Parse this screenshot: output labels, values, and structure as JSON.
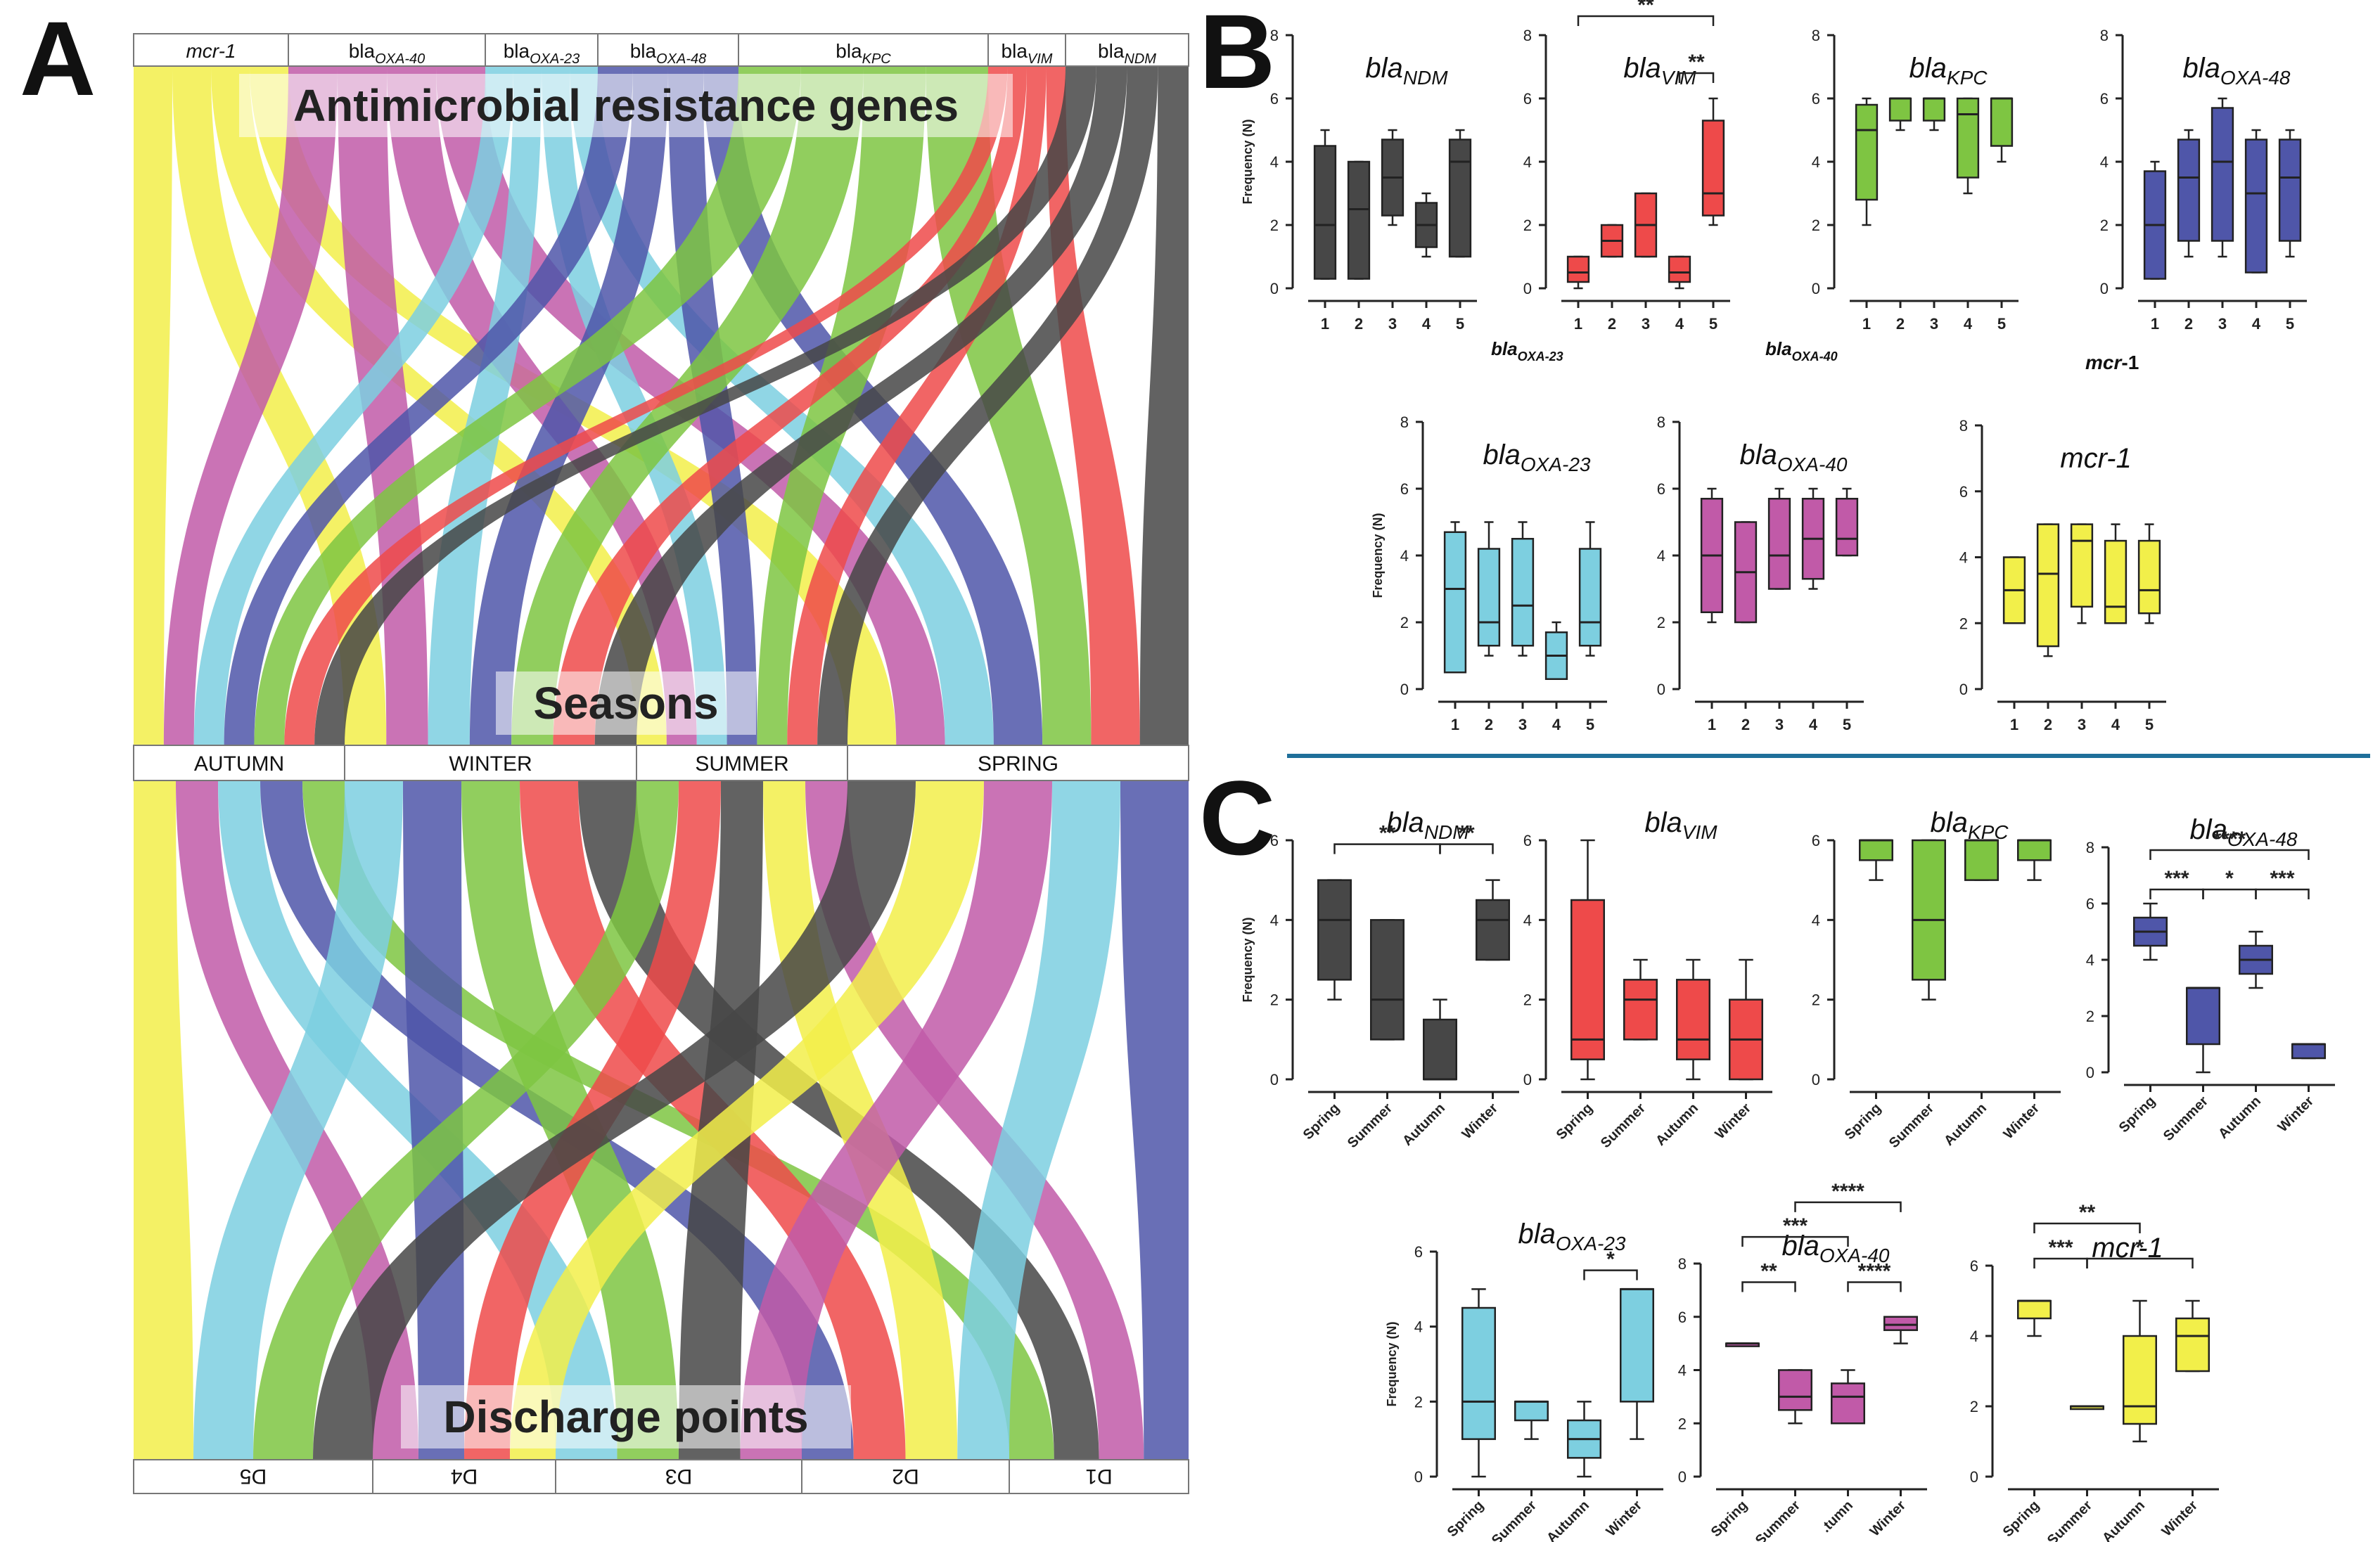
{
  "panel_letters": {
    "a": "A",
    "b": "B",
    "c": "C"
  },
  "colors": {
    "mcr1": "#f2ef4a",
    "oxa40": "#c15aa8",
    "oxa23": "#7dcfe0",
    "oxa48": "#4f56a9",
    "kpc": "#7ec542",
    "vim": "#ee4a4a",
    "ndm": "#474747",
    "divider": "#1f6f9a"
  },
  "sankey": {
    "title_top": "Antimicrobial resistance genes",
    "title_mid": "Seasons",
    "title_bottom": "Discharge points",
    "genes": [
      {
        "key": "mcr1",
        "base": "mcr-1",
        "sub": ""
      },
      {
        "key": "oxa40",
        "base": "bla",
        "sub": "OXA-40"
      },
      {
        "key": "oxa23",
        "base": "bla",
        "sub": "OXA-23"
      },
      {
        "key": "oxa48",
        "base": "bla",
        "sub": "OXA-48"
      },
      {
        "key": "kpc",
        "base": "bla",
        "sub": "KPC"
      },
      {
        "key": "vim",
        "base": "bla",
        "sub": "VIM"
      },
      {
        "key": "ndm",
        "base": "bla",
        "sub": "NDM"
      }
    ],
    "seasons": [
      "AUTUMN",
      "WINTER",
      "SUMMER",
      "SPRING"
    ],
    "points": [
      "D5",
      "D4",
      "D3",
      "D2",
      "D1"
    ]
  },
  "panel_b_stray_labels": [
    {
      "base": "bla",
      "sub": "OXA-23"
    },
    {
      "base": "bla",
      "sub": "OXA-40"
    },
    {
      "base": "mcr",
      "sub": "-1"
    }
  ],
  "chart_data": [
    {
      "id": "b-ndm",
      "panel": "B",
      "type": "boxplot",
      "color_key": "ndm",
      "title_base": "bla",
      "title_sub": "NDM",
      "ylabel": "Frequency (N)",
      "ylim": [
        0,
        8
      ],
      "yticks": [
        "0",
        "2",
        "4",
        "6",
        "8"
      ],
      "categories": [
        "1",
        "2",
        "3",
        "4",
        "5"
      ],
      "boxes": [
        {
          "min": 0.3,
          "q1": 0.3,
          "median": 2,
          "q3": 4.5,
          "max": 5
        },
        {
          "min": 0.3,
          "q1": 0.3,
          "median": 2.5,
          "q3": 4,
          "max": 4
        },
        {
          "min": 2,
          "q1": 2.3,
          "median": 3.5,
          "q3": 4.7,
          "max": 5
        },
        {
          "min": 1,
          "q1": 1.3,
          "median": 2,
          "q3": 2.7,
          "max": 3
        },
        {
          "min": 1,
          "q1": 1,
          "median": 4,
          "q3": 4.7,
          "max": 5
        }
      ],
      "sig": []
    },
    {
      "id": "b-vim",
      "panel": "B",
      "type": "boxplot",
      "color_key": "vim",
      "title_base": "bla",
      "title_sub": "VIM",
      "ylabel": "",
      "ylim": [
        0,
        8
      ],
      "yticks": [
        "0",
        "2",
        "4",
        "6",
        "8"
      ],
      "categories": [
        "1",
        "2",
        "3",
        "4",
        "5"
      ],
      "boxes": [
        {
          "min": 0,
          "q1": 0.2,
          "median": 0.5,
          "q3": 1,
          "max": 1
        },
        {
          "min": 1,
          "q1": 1,
          "median": 1.5,
          "q3": 2,
          "max": 2
        },
        {
          "min": 1,
          "q1": 1,
          "median": 2,
          "q3": 3,
          "max": 3
        },
        {
          "min": 0,
          "q1": 0.2,
          "median": 0.5,
          "q3": 1,
          "max": 1
        },
        {
          "min": 2,
          "q1": 2.3,
          "median": 3,
          "q3": 5.3,
          "max": 6
        }
      ],
      "sig": [
        {
          "from": 1,
          "to": 5,
          "label": "**",
          "level": 8.6
        },
        {
          "from": 4,
          "to": 5,
          "label": "**",
          "level": 6.8
        }
      ]
    },
    {
      "id": "b-kpc",
      "panel": "B",
      "type": "boxplot",
      "color_key": "kpc",
      "title_base": "bla",
      "title_sub": "KPC",
      "ylabel": "",
      "ylim": [
        0,
        8
      ],
      "yticks": [
        "0",
        "2",
        "4",
        "6",
        "8"
      ],
      "categories": [
        "1",
        "2",
        "3",
        "4",
        "5"
      ],
      "boxes": [
        {
          "min": 2,
          "q1": 2.8,
          "median": 5,
          "q3": 5.8,
          "max": 6
        },
        {
          "min": 5,
          "q1": 5.3,
          "median": 6,
          "q3": 6,
          "max": 6
        },
        {
          "min": 5,
          "q1": 5.3,
          "median": 6,
          "q3": 6,
          "max": 6
        },
        {
          "min": 3,
          "q1": 3.5,
          "median": 5.5,
          "q3": 6,
          "max": 6
        },
        {
          "min": 4,
          "q1": 4.5,
          "median": 6,
          "q3": 6,
          "max": 6
        }
      ],
      "sig": []
    },
    {
      "id": "b-oxa48",
      "panel": "B",
      "type": "boxplot",
      "color_key": "oxa48",
      "title_base": "bla",
      "title_sub": "OXA-48",
      "ylabel": "",
      "ylim": [
        0,
        8
      ],
      "yticks": [
        "0",
        "2",
        "4",
        "6",
        "8"
      ],
      "categories": [
        "1",
        "2",
        "3",
        "4",
        "5"
      ],
      "boxes": [
        {
          "min": 0.3,
          "q1": 0.3,
          "median": 2,
          "q3": 3.7,
          "max": 4
        },
        {
          "min": 1,
          "q1": 1.5,
          "median": 3.5,
          "q3": 4.7,
          "max": 5
        },
        {
          "min": 1,
          "q1": 1.5,
          "median": 4,
          "q3": 5.7,
          "max": 6
        },
        {
          "min": 0.5,
          "q1": 0.5,
          "median": 3,
          "q3": 4.7,
          "max": 5
        },
        {
          "min": 1,
          "q1": 1.5,
          "median": 3.5,
          "q3": 4.7,
          "max": 5
        }
      ],
      "sig": []
    },
    {
      "id": "b-oxa23",
      "panel": "B",
      "type": "boxplot",
      "color_key": "oxa23",
      "title_base": "bla",
      "title_sub": "OXA-23",
      "ylabel": "Frequency (N)",
      "ylim": [
        0,
        8
      ],
      "yticks": [
        "0",
        "2",
        "4",
        "6",
        "8"
      ],
      "categories": [
        "1",
        "2",
        "3",
        "4",
        "5"
      ],
      "boxes": [
        {
          "min": 0.5,
          "q1": 0.5,
          "median": 3,
          "q3": 4.7,
          "max": 5
        },
        {
          "min": 1,
          "q1": 1.3,
          "median": 2,
          "q3": 4.2,
          "max": 5
        },
        {
          "min": 1,
          "q1": 1.3,
          "median": 2.5,
          "q3": 4.5,
          "max": 5
        },
        {
          "min": 0.3,
          "q1": 0.3,
          "median": 1,
          "q3": 1.7,
          "max": 2
        },
        {
          "min": 1,
          "q1": 1.3,
          "median": 2,
          "q3": 4.2,
          "max": 5
        }
      ],
      "sig": []
    },
    {
      "id": "b-oxa40",
      "panel": "B",
      "type": "boxplot",
      "color_key": "oxa40",
      "title_base": "bla",
      "title_sub": "OXA-40",
      "ylabel": "",
      "ylim": [
        0,
        8
      ],
      "yticks": [
        "0",
        "2",
        "4",
        "6",
        "8"
      ],
      "categories": [
        "1",
        "2",
        "3",
        "4",
        "5"
      ],
      "boxes": [
        {
          "min": 2,
          "q1": 2.3,
          "median": 4,
          "q3": 5.7,
          "max": 6
        },
        {
          "min": 2,
          "q1": 2,
          "median": 3.5,
          "q3": 5,
          "max": 5
        },
        {
          "min": 3,
          "q1": 3,
          "median": 4,
          "q3": 5.7,
          "max": 6
        },
        {
          "min": 3,
          "q1": 3.3,
          "median": 4.5,
          "q3": 5.7,
          "max": 6
        },
        {
          "min": 4,
          "q1": 4,
          "median": 4.5,
          "q3": 5.7,
          "max": 6
        }
      ],
      "sig": []
    },
    {
      "id": "b-mcr1",
      "panel": "B",
      "type": "boxplot",
      "color_key": "mcr1",
      "title_base": "mcr-1",
      "title_sub": "",
      "ylabel": "",
      "ylim": [
        0,
        8
      ],
      "yticks": [
        "0",
        "2",
        "4",
        "6",
        "8"
      ],
      "categories": [
        "1",
        "2",
        "3",
        "4",
        "5"
      ],
      "boxes": [
        {
          "min": 2,
          "q1": 2,
          "median": 3,
          "q3": 4,
          "max": 4
        },
        {
          "min": 1,
          "q1": 1.3,
          "median": 3.5,
          "q3": 5,
          "max": 5
        },
        {
          "min": 2,
          "q1": 2.5,
          "median": 4.5,
          "q3": 5,
          "max": 5
        },
        {
          "min": 2,
          "q1": 2,
          "median": 2.5,
          "q3": 4.5,
          "max": 5
        },
        {
          "min": 2,
          "q1": 2.3,
          "median": 3,
          "q3": 4.5,
          "max": 5
        }
      ],
      "sig": []
    },
    {
      "id": "c-ndm",
      "panel": "C",
      "type": "boxplot",
      "color_key": "ndm",
      "title_base": "bla",
      "title_sub": "NDM",
      "ylabel": "Frequency (N)",
      "ylim": [
        0,
        6
      ],
      "yticks": [
        "0",
        "2",
        "4",
        "6"
      ],
      "categories": [
        "Spring",
        "Summer",
        "Autumn",
        "Winter"
      ],
      "boxes": [
        {
          "min": 2,
          "q1": 2.5,
          "median": 4,
          "q3": 5,
          "max": 5
        },
        {
          "min": 1,
          "q1": 1,
          "median": 2,
          "q3": 4,
          "max": 4
        },
        {
          "min": 0,
          "q1": 0,
          "median": 0,
          "q3": 1.5,
          "max": 2
        },
        {
          "min": 3,
          "q1": 3,
          "median": 4,
          "q3": 4.5,
          "max": 5
        }
      ],
      "sig": [
        {
          "from": 1,
          "to": 3,
          "label": "**",
          "level": 5.9
        },
        {
          "from": 3,
          "to": 4,
          "label": "**",
          "level": 5.9
        }
      ]
    },
    {
      "id": "c-vim",
      "panel": "C",
      "type": "boxplot",
      "color_key": "vim",
      "title_base": "bla",
      "title_sub": "VIM",
      "ylabel": "",
      "ylim": [
        0,
        6
      ],
      "yticks": [
        "0",
        "2",
        "4",
        "6"
      ],
      "categories": [
        "Spring",
        "Summer",
        "Autumn",
        "Winter"
      ],
      "boxes": [
        {
          "min": 0,
          "q1": 0.5,
          "median": 1,
          "q3": 4.5,
          "max": 6
        },
        {
          "min": 1,
          "q1": 1,
          "median": 2,
          "q3": 2.5,
          "max": 3
        },
        {
          "min": 0,
          "q1": 0.5,
          "median": 1,
          "q3": 2.5,
          "max": 3
        },
        {
          "min": 0,
          "q1": 0,
          "median": 1,
          "q3": 2,
          "max": 3
        }
      ],
      "sig": []
    },
    {
      "id": "c-kpc",
      "panel": "C",
      "type": "boxplot",
      "color_key": "kpc",
      "title_base": "bla",
      "title_sub": "KPC",
      "ylabel": "",
      "ylim": [
        0,
        6
      ],
      "yticks": [
        "0",
        "2",
        "4",
        "6"
      ],
      "categories": [
        "Spring",
        "Summer",
        "Autumn",
        "Winter"
      ],
      "boxes": [
        {
          "min": 5,
          "q1": 5.5,
          "median": 6,
          "q3": 6,
          "max": 6
        },
        {
          "min": 2,
          "q1": 2.5,
          "median": 4,
          "q3": 6,
          "max": 6
        },
        {
          "min": 5,
          "q1": 5,
          "median": 6,
          "q3": 6,
          "max": 6
        },
        {
          "min": 5,
          "q1": 5.5,
          "median": 6,
          "q3": 6,
          "max": 6
        }
      ],
      "sig": []
    },
    {
      "id": "c-oxa48",
      "panel": "C",
      "type": "boxplot",
      "color_key": "oxa48",
      "title_base": "bla",
      "title_sub": "OXA-48",
      "ylabel": "",
      "ylim": [
        0,
        8
      ],
      "yticks": [
        "0",
        "2",
        "4",
        "6",
        "8"
      ],
      "categories": [
        "Spring",
        "Summer",
        "Autumn",
        "Winter"
      ],
      "boxes": [
        {
          "min": 4,
          "q1": 4.5,
          "median": 5,
          "q3": 5.5,
          "max": 6
        },
        {
          "min": 0,
          "q1": 1,
          "median": 3,
          "q3": 3,
          "max": 3
        },
        {
          "min": 3,
          "q1": 3.5,
          "median": 4,
          "q3": 4.5,
          "max": 5
        },
        {
          "min": 0.5,
          "q1": 0.5,
          "median": 1,
          "q3": 1,
          "max": 1
        }
      ],
      "sig": [
        {
          "from": 1,
          "to": 4,
          "label": "****",
          "level": 7.9
        },
        {
          "from": 1,
          "to": 2,
          "label": "***",
          "level": 6.5
        },
        {
          "from": 2,
          "to": 3,
          "label": "*",
          "level": 6.5
        },
        {
          "from": 3,
          "to": 4,
          "label": "***",
          "level": 6.5
        }
      ]
    },
    {
      "id": "c-oxa23",
      "panel": "C",
      "type": "boxplot",
      "color_key": "oxa23",
      "title_base": "bla",
      "title_sub": "OXA-23",
      "ylabel": "Frequency (N)",
      "ylim": [
        0,
        6
      ],
      "yticks": [
        "0",
        "2",
        "4",
        "6"
      ],
      "categories": [
        "Spring",
        "Summer",
        "Autumn",
        "Winter"
      ],
      "boxes": [
        {
          "min": 0,
          "q1": 1,
          "median": 2,
          "q3": 4.5,
          "max": 5
        },
        {
          "min": 1,
          "q1": 1.5,
          "median": 2,
          "q3": 2,
          "max": 2
        },
        {
          "min": 0,
          "q1": 0.5,
          "median": 1,
          "q3": 1.5,
          "max": 2
        },
        {
          "min": 1,
          "q1": 2,
          "median": 5,
          "q3": 5,
          "max": 5
        }
      ],
      "sig": [
        {
          "from": 3,
          "to": 4,
          "label": "*",
          "level": 5.5
        }
      ]
    },
    {
      "id": "c-oxa40",
      "panel": "C",
      "type": "boxplot",
      "color_key": "oxa40",
      "title_base": "bla",
      "title_sub": "OXA-40",
      "ylabel": "",
      "ylim": [
        0,
        8
      ],
      "yticks": [
        "0",
        "2",
        "4",
        "6",
        "8"
      ],
      "categories": [
        "Spring",
        "Summer",
        ".tumn",
        "Winter"
      ],
      "boxes": [
        {
          "min": 5,
          "q1": 5,
          "median": 5,
          "q3": 5,
          "max": 5
        },
        {
          "min": 2,
          "q1": 2.5,
          "median": 3,
          "q3": 4,
          "max": 4
        },
        {
          "min": 2,
          "q1": 2,
          "median": 3,
          "q3": 3.5,
          "max": 4
        },
        {
          "min": 5,
          "q1": 5.5,
          "median": 5.7,
          "q3": 6,
          "max": 6
        }
      ],
      "sig": [
        {
          "from": 1,
          "to": 2,
          "label": "**",
          "level": 7.3
        },
        {
          "from": 3,
          "to": 4,
          "label": "****",
          "level": 7.3
        },
        {
          "from": 1,
          "to": 3,
          "label": "***",
          "level": 9.0
        },
        {
          "from": 2,
          "to": 4,
          "label": "****",
          "level": 10.3
        }
      ]
    },
    {
      "id": "c-mcr1",
      "panel": "C",
      "type": "boxplot",
      "color_key": "mcr1",
      "title_base": "mcr-1",
      "title_sub": "",
      "ylabel": "",
      "ylim": [
        0,
        6
      ],
      "yticks": [
        "0",
        "2",
        "4",
        "6"
      ],
      "categories": [
        "Spring",
        "Summer",
        "Autumn",
        "Winter"
      ],
      "boxes": [
        {
          "min": 4,
          "q1": 4.5,
          "median": 5,
          "q3": 5,
          "max": 5
        },
        {
          "min": 2,
          "q1": 2,
          "median": 2,
          "q3": 2,
          "max": 2
        },
        {
          "min": 1,
          "q1": 1.5,
          "median": 2,
          "q3": 4,
          "max": 5
        },
        {
          "min": 3,
          "q1": 3,
          "median": 4,
          "q3": 4.5,
          "max": 5
        }
      ],
      "sig": [
        {
          "from": 1,
          "to": 3,
          "label": "**",
          "level": 7.2
        },
        {
          "from": 1,
          "to": 2,
          "label": "***",
          "level": 6.2
        },
        {
          "from": 2,
          "to": 4,
          "label": "*",
          "level": 6.2
        }
      ]
    }
  ]
}
